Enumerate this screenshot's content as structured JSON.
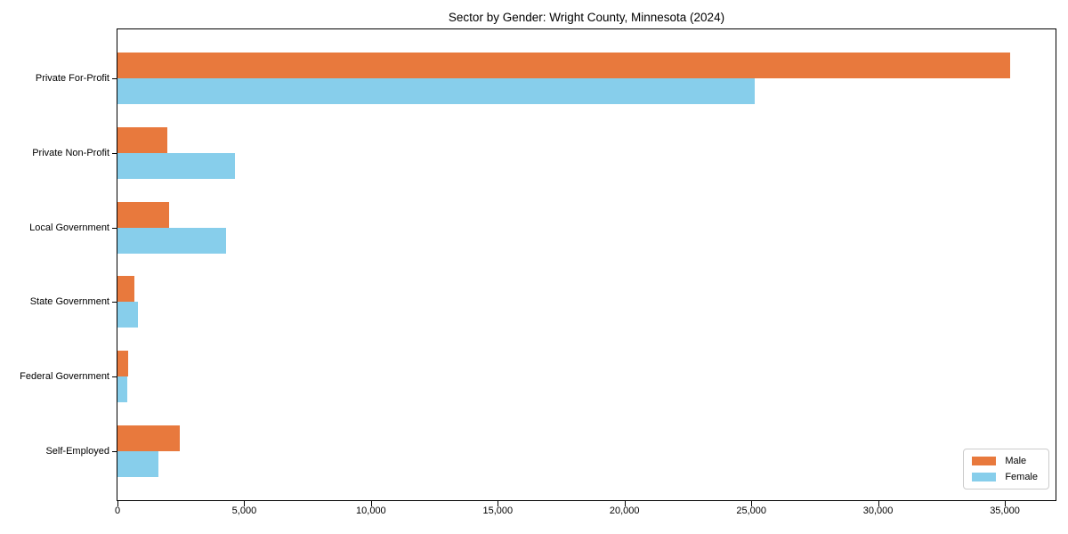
{
  "chart_data": {
    "type": "bar",
    "orientation": "horizontal",
    "title": "Sector by Gender: Wright County, Minnesota (2024)",
    "categories": [
      "Private For-Profit",
      "Private Non-Profit",
      "Local Government",
      "State Government",
      "Federal Government",
      "Self-Employed"
    ],
    "series": [
      {
        "name": "Male",
        "color": "#E8793D",
        "values": [
          35200,
          1970,
          2020,
          650,
          410,
          2460
        ]
      },
      {
        "name": "Female",
        "color": "#87CEEB",
        "values": [
          25150,
          4630,
          4280,
          800,
          370,
          1620
        ]
      }
    ],
    "xlabel": "",
    "ylabel": "",
    "xlim": [
      0,
      37000
    ],
    "xticks": [
      0,
      5000,
      10000,
      15000,
      20000,
      25000,
      30000,
      35000
    ],
    "xtick_labels": [
      "0",
      "5,000",
      "10,000",
      "15,000",
      "20,000",
      "25,000",
      "30,000",
      "35,000"
    ],
    "grid": false,
    "legend_position": "lower right",
    "plot_background": "#ffffff",
    "spine_color": "#000000"
  }
}
